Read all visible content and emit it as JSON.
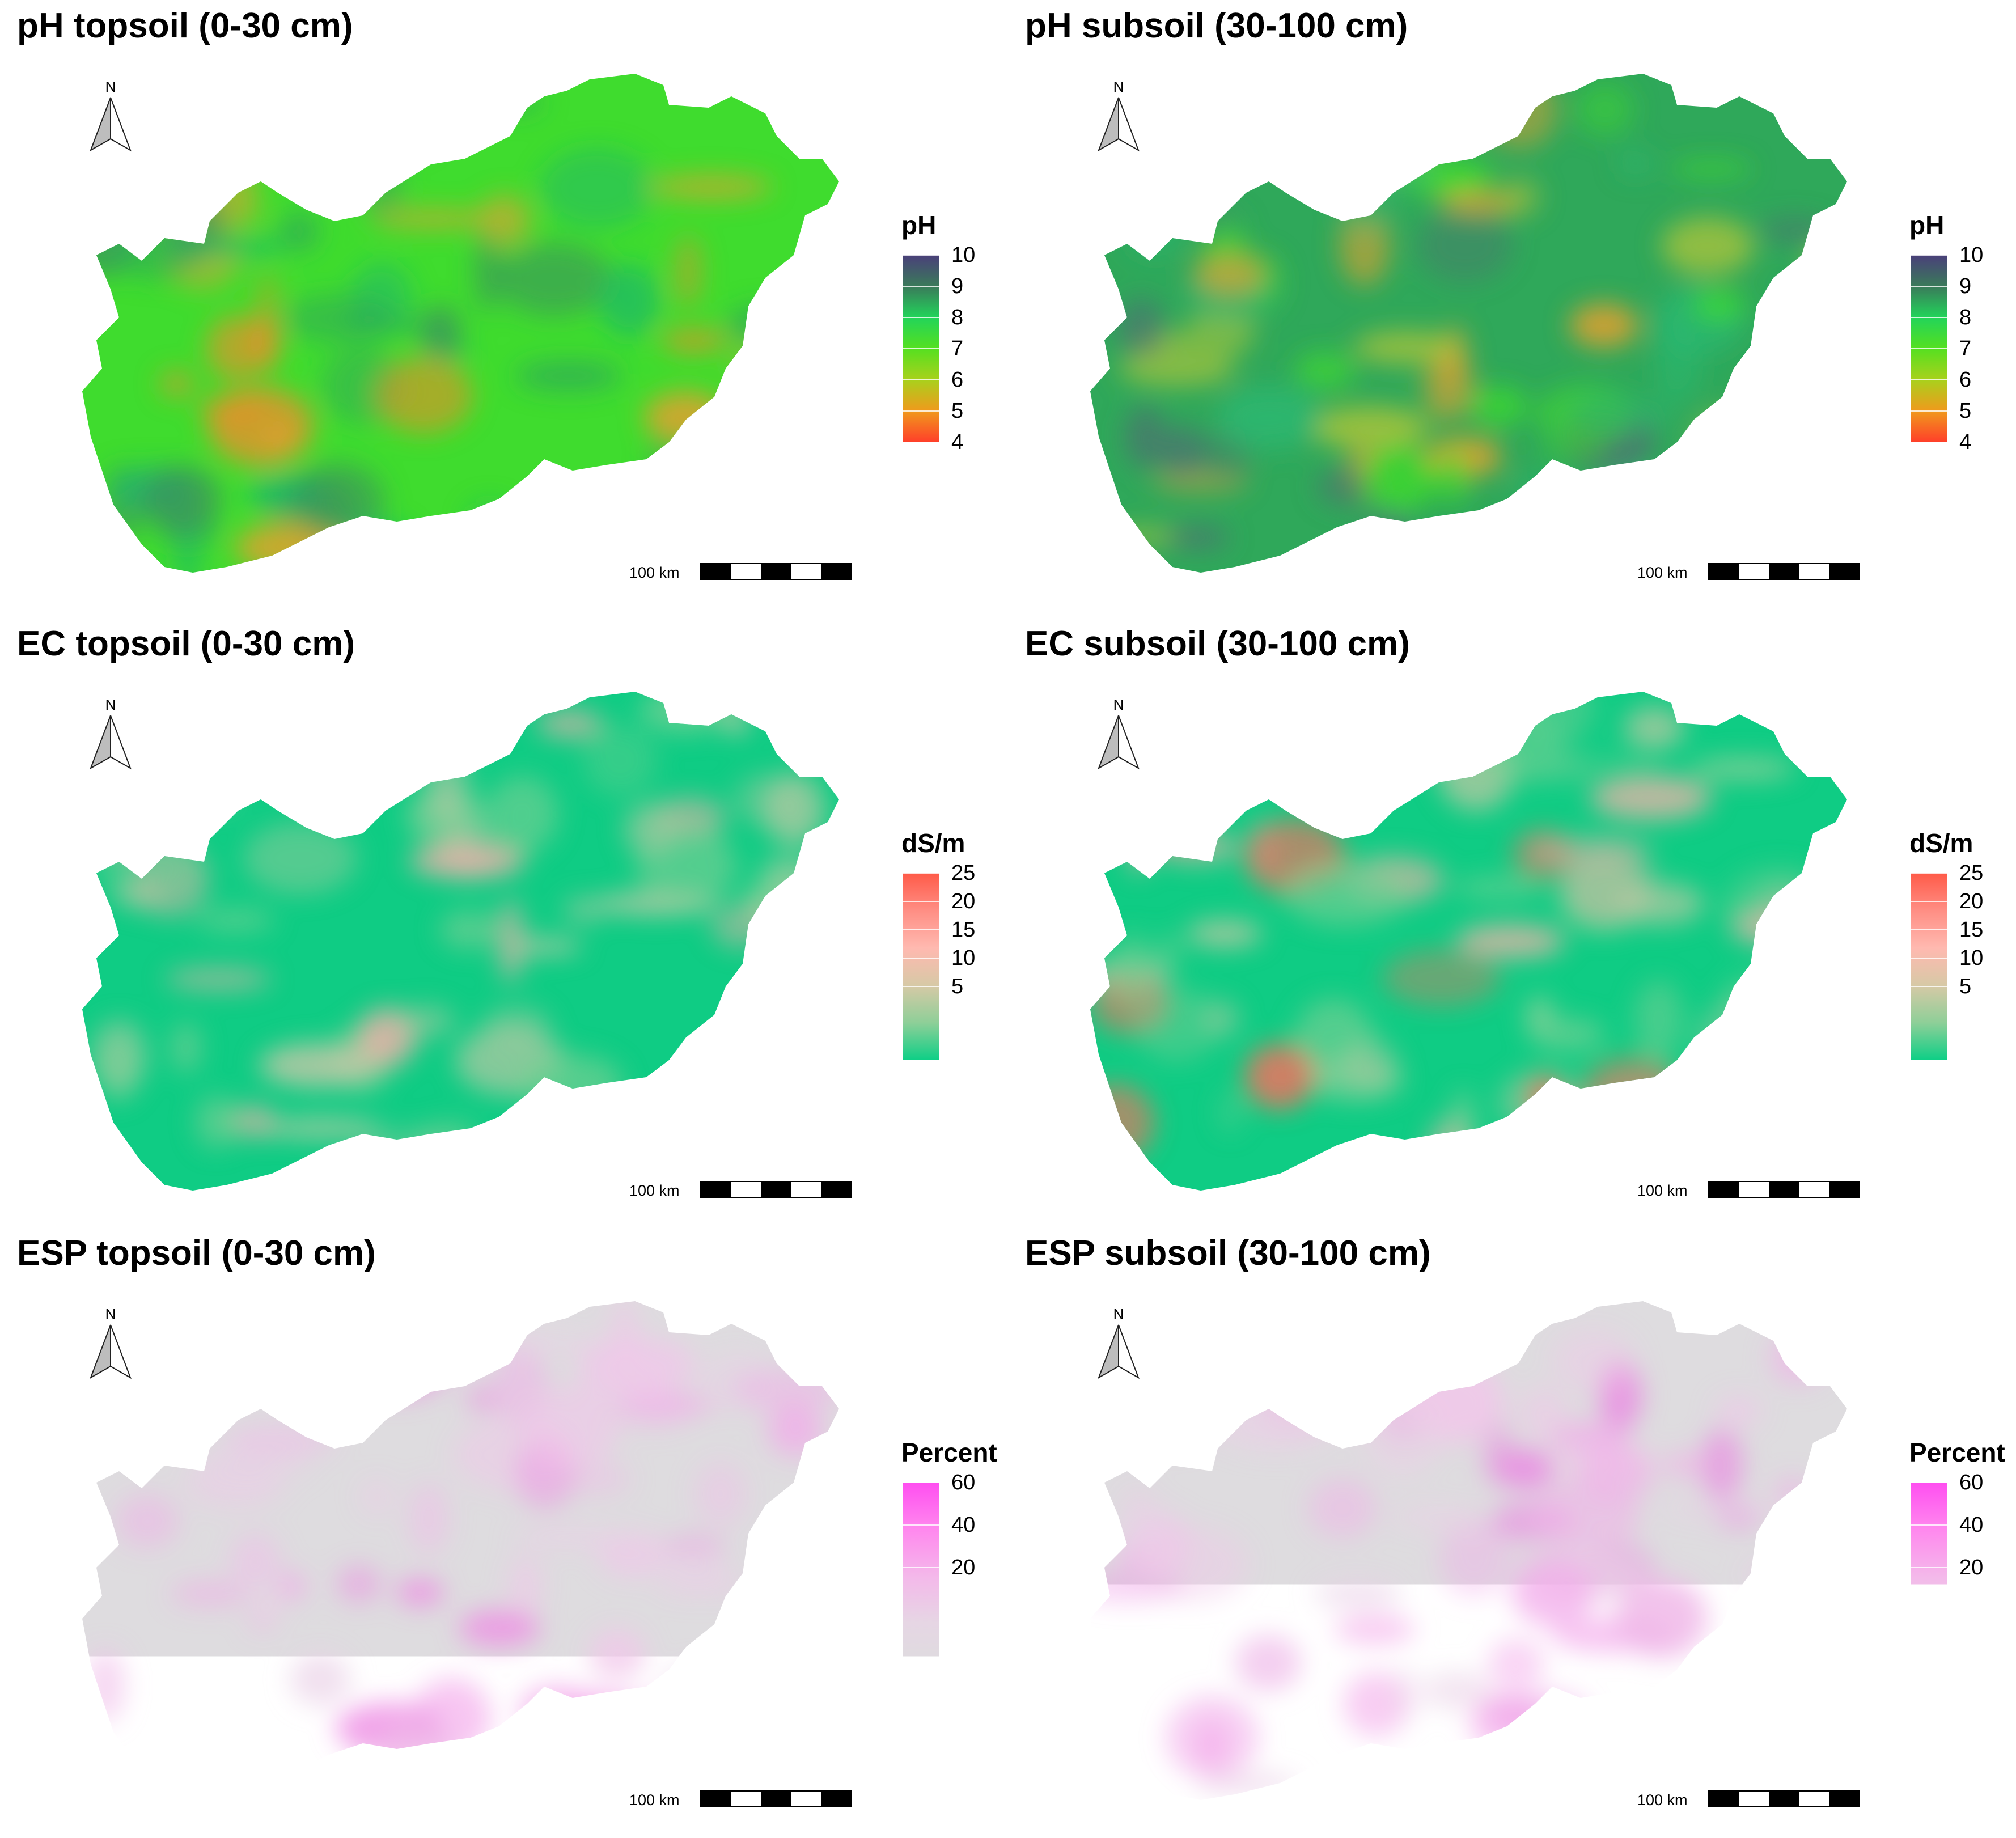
{
  "panels": [
    {
      "id": "ph-topsoil",
      "title": "pH topsoil (0-30 cm)",
      "legend_title": "pH",
      "legend_ticks": [
        "10",
        "9",
        "8",
        "7",
        "6",
        "5",
        "4"
      ],
      "legend_colors": [
        "#4a3f7a",
        "#3a7a5a",
        "#22d45a",
        "#55e020",
        "#a9d11c",
        "#f09a1c",
        "#ff3e2a"
      ],
      "fill_base": "#3fdc2e",
      "fill_patches": [
        "#e8902a",
        "#e4a030",
        "#2fa85a",
        "#1fb86a",
        "#3c8a62"
      ],
      "scale_label": "100 km",
      "north_label": "N"
    },
    {
      "id": "ph-subsoil",
      "title": "pH subsoil (30-100 cm)",
      "legend_title": "pH",
      "legend_ticks": [
        "10",
        "9",
        "8",
        "7",
        "6",
        "5",
        "4"
      ],
      "legend_colors": [
        "#4a3f7a",
        "#3a7a5a",
        "#22d45a",
        "#55e020",
        "#a9d11c",
        "#f09a1c",
        "#ff3e2a"
      ],
      "fill_base": "#2fa85a",
      "fill_patches": [
        "#e8a030",
        "#4f6f72",
        "#3fdc2e",
        "#2ab872",
        "#b4c63a"
      ],
      "scale_label": "100 km",
      "north_label": "N"
    },
    {
      "id": "ec-topsoil",
      "title": "EC topsoil (0-30 cm)",
      "legend_title": "dS/m",
      "legend_ticks": [
        "25",
        "20",
        "15",
        "10",
        "5"
      ],
      "legend_colors": [
        "#ff5a48",
        "#ff8e84",
        "#ffb9b0",
        "#d7c9a6",
        "#8ecf98",
        "#0dcf86"
      ],
      "fill_base": "#0fcc84",
      "fill_patches": [
        "#8ecf98",
        "#a9c9a0",
        "#c6c8a8",
        "#f4b0aa",
        "#6ccf92"
      ],
      "scale_label": "100 km",
      "north_label": "N"
    },
    {
      "id": "ec-subsoil",
      "title": "EC subsoil (30-100 cm)",
      "legend_title": "dS/m",
      "legend_ticks": [
        "25",
        "20",
        "15",
        "10",
        "5"
      ],
      "legend_colors": [
        "#ff5a48",
        "#ff8e84",
        "#ffb9b0",
        "#d7c9a6",
        "#8ecf98",
        "#0dcf86"
      ],
      "fill_base": "#0fcc84",
      "fill_patches": [
        "#8ecf98",
        "#b9c8a2",
        "#e8b4a8",
        "#ff6c5c",
        "#6ccf92"
      ],
      "scale_label": "100 km",
      "north_label": "N"
    },
    {
      "id": "esp-topsoil",
      "title": "ESP topsoil (0-30 cm)",
      "legend_title": "Percent",
      "legend_ticks": [
        "60",
        "40",
        "20"
      ],
      "legend_colors": [
        "#ff4ef0",
        "#ff88ee",
        "#f4b8ea",
        "#e6d6e4",
        "#dddcde"
      ],
      "fill_base": "#dedcdf",
      "fill_patches": [
        "#f1c6ea",
        "#f3a8ea",
        "#ee8ae4",
        "#e9d0e6",
        "#f0bde9"
      ],
      "scale_label": "100 km",
      "north_label": "N"
    },
    {
      "id": "esp-subsoil",
      "title": "ESP subsoil (30-100 cm)",
      "legend_title": "Percent",
      "legend_ticks": [
        "60",
        "40",
        "20"
      ],
      "legend_colors": [
        "#ff4ef0",
        "#ff88ee",
        "#f4b8ea",
        "#e6d6e4",
        "#dddcde"
      ],
      "fill_base": "#dedcdf",
      "fill_patches": [
        "#f1c6ea",
        "#f3a8ea",
        "#ea88e2",
        "#e9d0e6",
        "#efb6e8"
      ],
      "scale_label": "100 km",
      "north_label": "N"
    }
  ]
}
